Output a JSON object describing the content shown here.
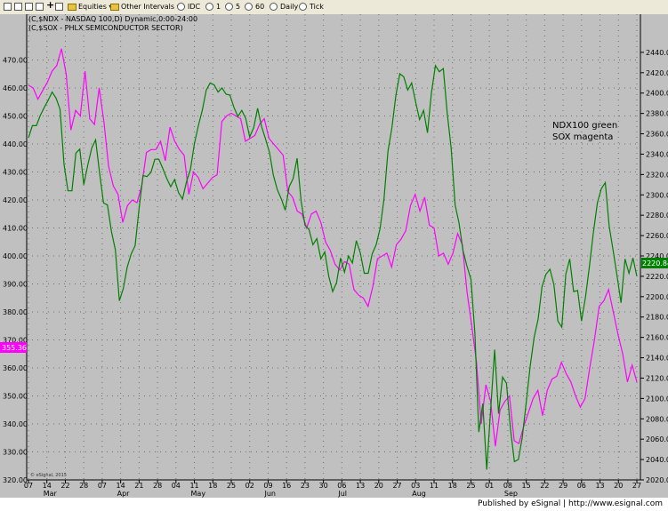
{
  "toolbar": {
    "items": [
      "Equities",
      "Other Intervals",
      "IDC",
      "1",
      "5",
      "60",
      "Daily",
      "Tick"
    ]
  },
  "footer": {
    "text": "Published by eSignal | http://www.esignal.com"
  },
  "chart_data": {
    "type": "line",
    "header": [
      "(C,$NDX - NASDAQ 100,D) Dynamic,0:00-24:00",
      "(C,$SOX - PHLX SEMICONDUCTOR SECTOR)"
    ],
    "annotation": [
      "NDX100 green",
      "SOX magenta"
    ],
    "copyright": "© eSignal, 2015",
    "background": "#c0c0c0",
    "grid": true,
    "left_axis": {
      "label": "SOX",
      "range": [
        320,
        480
      ],
      "ticks": [
        320,
        330,
        340,
        350,
        360,
        370,
        380,
        390,
        400,
        410,
        420,
        430,
        440,
        450,
        460,
        470
      ],
      "last_value": "355.36",
      "color": "#ff00ff"
    },
    "right_axis": {
      "label": "NDX",
      "range": [
        2020,
        2460
      ],
      "ticks": [
        2020,
        2040,
        2060,
        2080,
        2100,
        2120,
        2140,
        2160,
        2180,
        2200,
        2220,
        2240,
        2260,
        2280,
        2300,
        2320,
        2340,
        2360,
        2380,
        2400,
        2420,
        2440
      ],
      "last_value": "2220.84",
      "color": "#008000"
    },
    "x_ticks": [
      "07",
      "14",
      "22",
      "28",
      "07",
      "14",
      "21",
      "28",
      "04",
      "11",
      "18",
      "25",
      "02",
      "09",
      "16",
      "23",
      "30",
      "06",
      "13",
      "20",
      "27",
      "03",
      "11",
      "18",
      "25",
      "01",
      "08",
      "15",
      "22",
      "29",
      "06",
      "13",
      "20",
      "27"
    ],
    "month_labels": [
      "Mar",
      "Apr",
      "May",
      "Jun",
      "Jul",
      "Aug",
      "Sep"
    ],
    "series": [
      {
        "name": "SOX",
        "axis": "left",
        "color": "#ff00ff",
        "values": [
          461,
          460,
          456,
          459,
          462,
          466,
          468,
          474,
          465,
          445,
          452,
          450,
          466,
          449,
          447,
          460,
          448,
          432,
          425,
          422,
          412,
          418,
          420,
          419,
          425,
          437,
          438,
          438,
          441,
          434,
          446,
          441,
          438,
          436,
          422,
          430,
          428,
          424,
          426,
          428,
          429,
          448,
          450,
          451,
          450,
          449,
          441,
          442,
          443,
          447,
          449,
          442,
          440,
          438,
          436,
          423,
          421,
          416,
          415,
          410,
          415,
          416,
          412,
          405,
          402,
          397,
          395,
          398,
          397,
          388,
          386,
          385,
          382,
          389,
          399,
          400,
          401,
          396,
          404,
          406,
          409,
          418,
          422,
          416,
          421,
          411,
          410,
          400,
          401,
          397,
          401,
          408,
          404,
          387,
          375,
          362,
          340,
          354,
          348,
          332,
          345,
          348,
          350,
          334,
          333,
          339,
          344,
          349,
          352,
          343,
          352,
          356,
          357,
          362,
          358,
          355,
          350,
          346,
          349,
          360,
          370,
          382,
          384,
          388,
          380,
          372,
          365,
          355,
          361,
          355
        ]
      },
      {
        "name": "NDX",
        "axis": "right",
        "color": "#008000",
        "values": [
          2356,
          2368,
          2368,
          2378,
          2386,
          2393,
          2401,
          2395,
          2384,
          2330,
          2304,
          2304,
          2341,
          2345,
          2310,
          2329,
          2346,
          2354,
          2322,
          2292,
          2290,
          2264,
          2246,
          2196,
          2208,
          2229,
          2242,
          2250,
          2287,
          2319,
          2318,
          2322,
          2335,
          2335,
          2326,
          2316,
          2308,
          2315,
          2302,
          2296,
          2313,
          2325,
          2350,
          2368,
          2383,
          2403,
          2410,
          2408,
          2401,
          2405,
          2399,
          2398,
          2386,
          2377,
          2383,
          2375,
          2357,
          2366,
          2385,
          2367,
          2355,
          2342,
          2319,
          2305,
          2296,
          2285,
          2308,
          2316,
          2336,
          2294,
          2270,
          2266,
          2251,
          2257,
          2237,
          2244,
          2220,
          2205,
          2214,
          2238,
          2224,
          2240,
          2233,
          2255,
          2243,
          2223,
          2223,
          2242,
          2251,
          2267,
          2296,
          2343,
          2366,
          2398,
          2419,
          2416,
          2403,
          2410,
          2391,
          2374,
          2383,
          2361,
          2400,
          2427,
          2421,
          2424,
          2380,
          2346,
          2290,
          2272,
          2245,
          2230,
          2217,
          2164,
          2067,
          2095,
          2030,
          2090,
          2148,
          2085,
          2121,
          2115,
          2070,
          2038,
          2040,
          2062,
          2096,
          2132,
          2160,
          2178,
          2210,
          2222,
          2227,
          2212,
          2176,
          2170,
          2222,
          2237,
          2205,
          2206,
          2176,
          2200,
          2230,
          2263,
          2292,
          2306,
          2312,
          2269,
          2245,
          2220,
          2194,
          2237,
          2223,
          2238,
          2220
        ]
      }
    ]
  }
}
